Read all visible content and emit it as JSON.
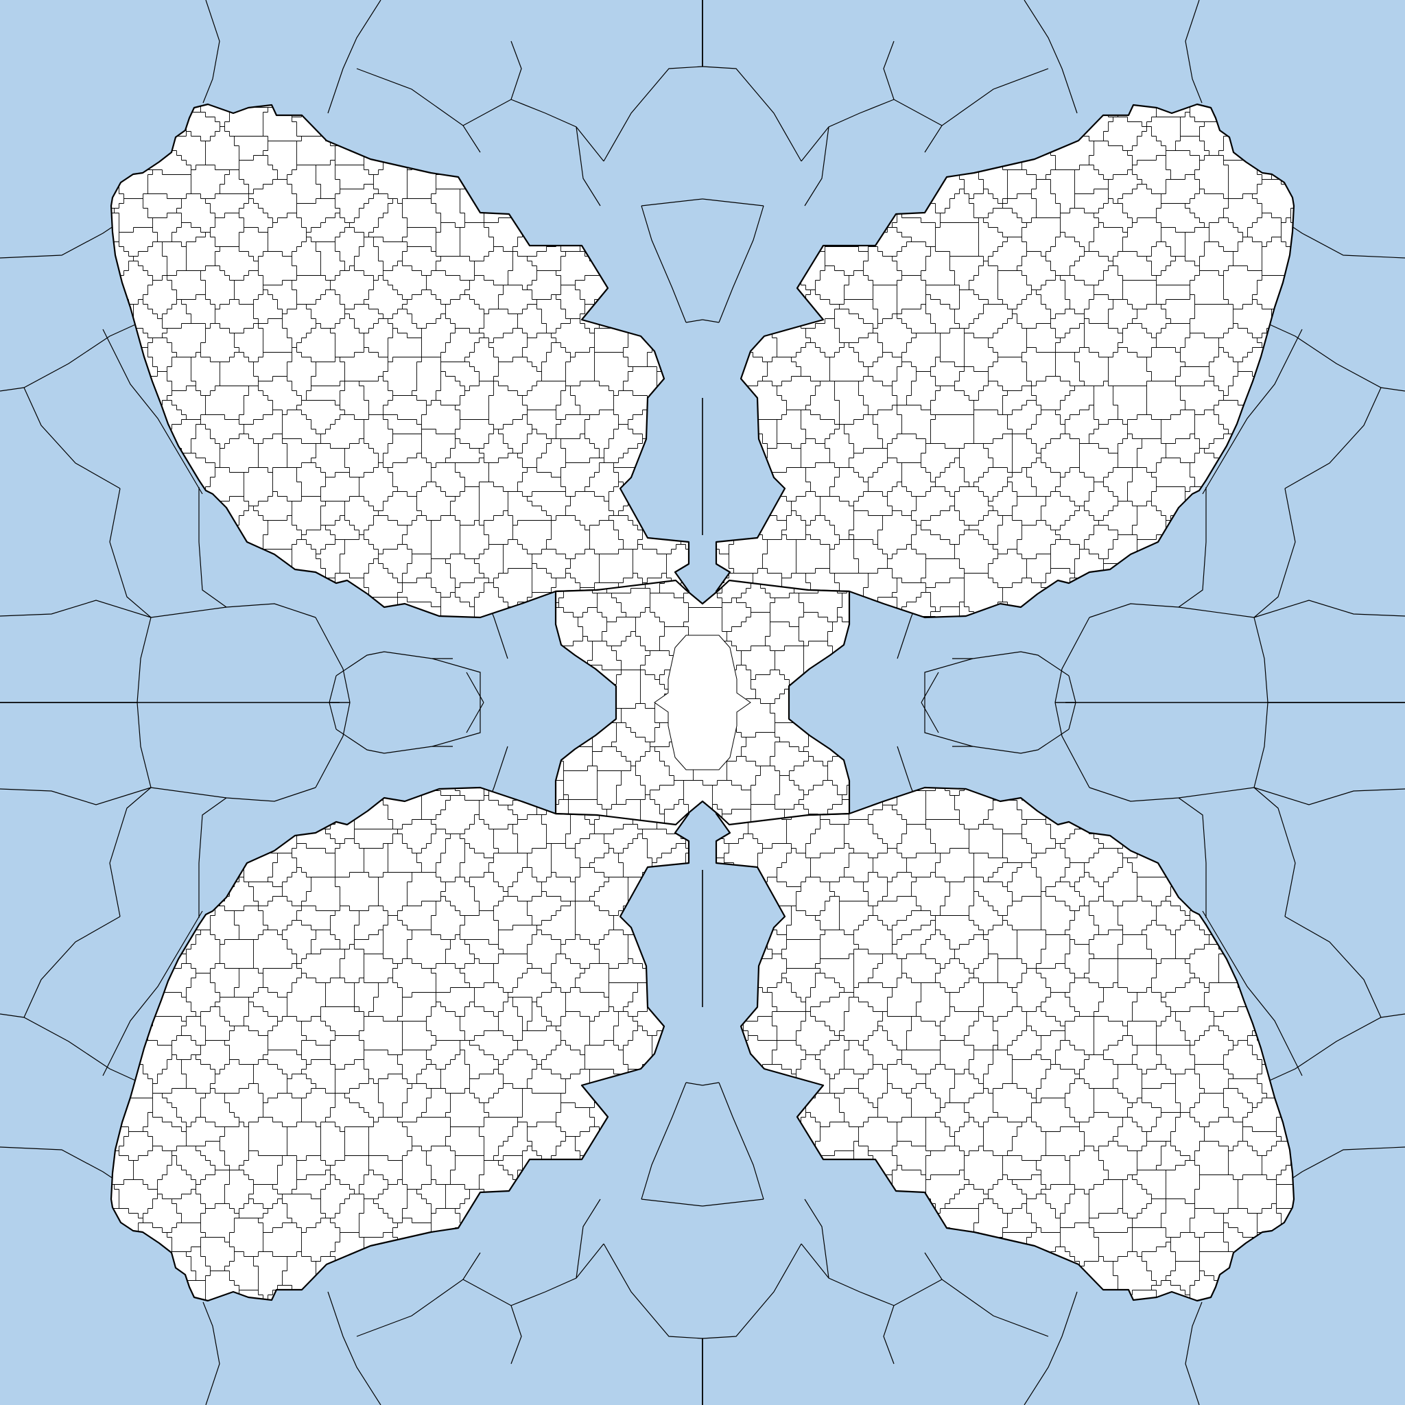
{
  "colors": {
    "water": "#b3d1ec",
    "land": "#ffffff",
    "edge": "#000000"
  },
  "icons": {
    "diagram": "voronoi-mesh-icon"
  }
}
